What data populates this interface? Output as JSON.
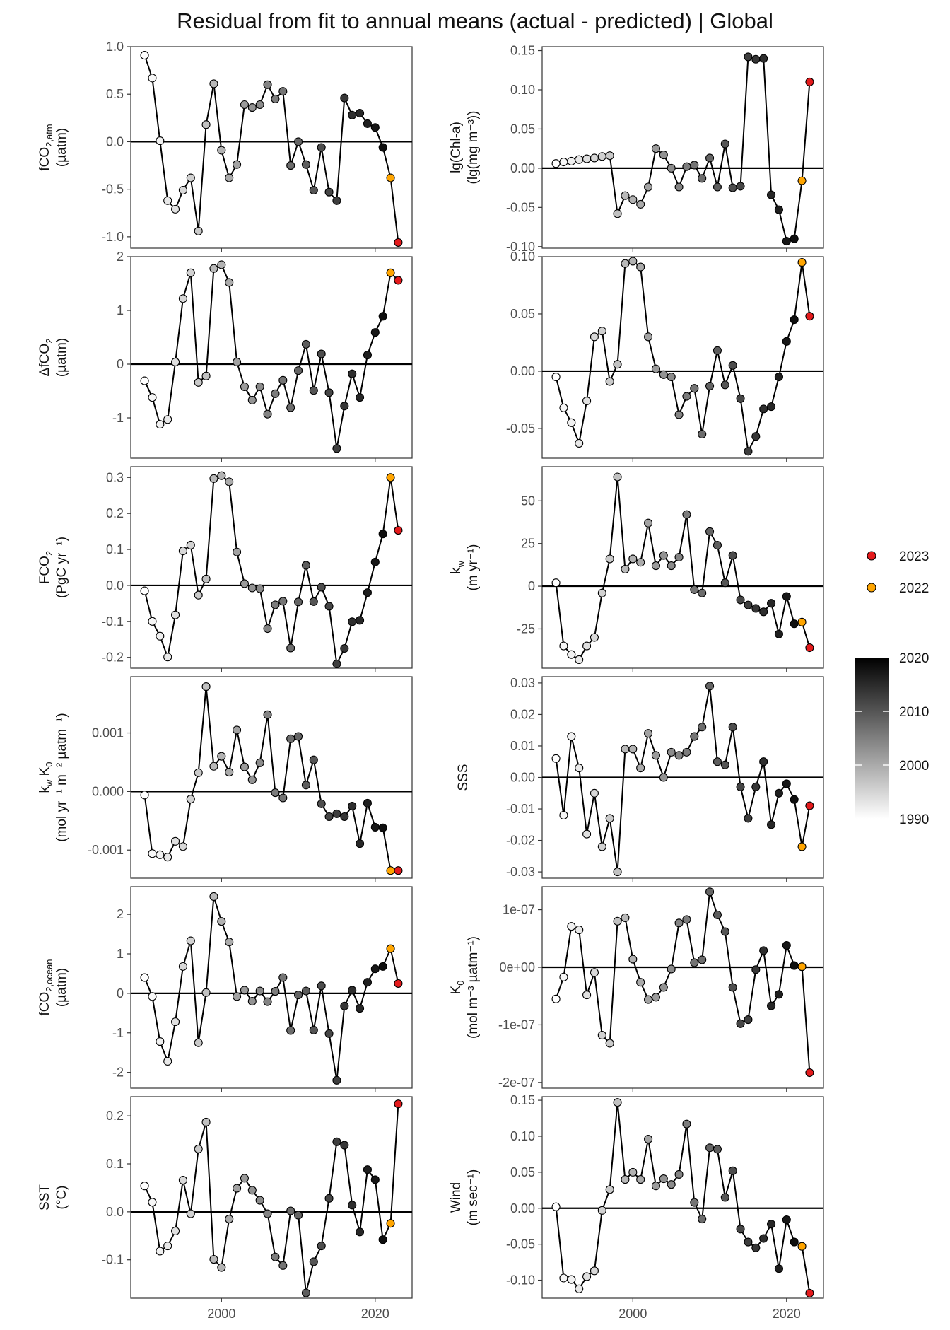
{
  "title": "Residual from fit to annual means (actual - predicted) | Global",
  "colors": {
    "highlight_2023": "#e41a1c",
    "highlight_2022": "#ffa500",
    "gradient_low": "#ffffff",
    "gradient_high": "#000000",
    "zero_line": "#000000",
    "series_line": "#000000"
  },
  "legend": {
    "highlight_items": [
      {
        "label": "2023",
        "color": "#e41a1c"
      },
      {
        "label": "2022",
        "color": "#ffa500"
      }
    ],
    "gradient_ticks": [
      1990,
      2000,
      2010,
      2020
    ],
    "gradient_range": [
      1990,
      2023
    ]
  },
  "x_axis": {
    "ticks": [
      2000,
      2020
    ],
    "range": [
      1988.2,
      2024.8
    ]
  },
  "chart_data": [
    {
      "type": "line",
      "id": "fco2atm",
      "ylabel": {
        "main": "fCO",
        "sub": "2,atm",
        "line2": "(µatm)"
      },
      "ylim": [
        -1.12,
        1.0
      ],
      "yticks": [
        -1.0,
        -0.5,
        0.0,
        0.5,
        1.0
      ],
      "ytick_labels": [
        "-1.0",
        "-0.5",
        "0.0",
        "0.5",
        "1.0"
      ],
      "x": [
        1990,
        1991,
        1992,
        1993,
        1994,
        1995,
        1996,
        1997,
        1998,
        1999,
        2000,
        2001,
        2002,
        2003,
        2004,
        2005,
        2006,
        2007,
        2008,
        2009,
        2010,
        2011,
        2012,
        2013,
        2014,
        2015,
        2016,
        2017,
        2018,
        2019,
        2020,
        2021,
        2022,
        2023
      ],
      "values": [
        0.91,
        0.67,
        0.01,
        -0.62,
        -0.71,
        -0.51,
        -0.38,
        -0.94,
        0.18,
        0.61,
        -0.09,
        -0.38,
        -0.24,
        0.39,
        0.36,
        0.39,
        0.6,
        0.45,
        0.53,
        -0.25,
        0.0,
        -0.24,
        -0.51,
        -0.06,
        -0.53,
        -0.62,
        0.46,
        0.28,
        0.3,
        0.19,
        0.15,
        -0.06,
        -0.38,
        -1.06
      ]
    },
    {
      "type": "line",
      "id": "chla",
      "ylabel": {
        "main": "lg(Chl-a)",
        "line2": "(lg(mg m⁻³))"
      },
      "ylim": [
        -0.102,
        0.155
      ],
      "yticks": [
        -0.1,
        -0.05,
        0.0,
        0.05,
        0.1,
        0.15
      ],
      "ytick_labels": [
        "-0.10",
        "-0.05",
        "0.00",
        "0.05",
        "0.10",
        "0.15"
      ],
      "x": [
        1990,
        1991,
        1992,
        1993,
        1994,
        1995,
        1996,
        1997,
        1998,
        1999,
        2000,
        2001,
        2002,
        2003,
        2004,
        2005,
        2006,
        2007,
        2008,
        2009,
        2010,
        2011,
        2012,
        2013,
        2014,
        2015,
        2016,
        2017,
        2018,
        2019,
        2020,
        2021,
        2022,
        2023
      ],
      "values": [
        0.006,
        0.008,
        0.009,
        0.011,
        0.012,
        0.013,
        0.015,
        0.016,
        -0.058,
        -0.035,
        -0.04,
        -0.046,
        -0.024,
        0.025,
        0.017,
        0.0,
        -0.024,
        0.002,
        0.004,
        -0.013,
        0.013,
        -0.024,
        0.031,
        -0.025,
        -0.023,
        0.142,
        0.139,
        0.14,
        -0.034,
        -0.053,
        -0.093,
        -0.09,
        -0.016,
        0.11
      ]
    },
    {
      "type": "line",
      "id": "dfco2",
      "ylabel": {
        "main": "ΔfCO",
        "sub": "2",
        "line2": "(µatm)"
      },
      "ylim": [
        -1.75,
        2.0
      ],
      "yticks": [
        -1,
        0,
        1,
        2
      ],
      "ytick_labels": [
        "-1",
        "0",
        "1",
        "2"
      ],
      "x": [
        1990,
        1991,
        1992,
        1993,
        1994,
        1995,
        1996,
        1997,
        1998,
        1999,
        2000,
        2001,
        2002,
        2003,
        2004,
        2005,
        2006,
        2007,
        2008,
        2009,
        2010,
        2011,
        2012,
        2013,
        2014,
        2015,
        2016,
        2017,
        2018,
        2019,
        2020,
        2021,
        2022,
        2023
      ],
      "values": [
        -0.31,
        -0.62,
        -1.12,
        -1.03,
        0.04,
        1.22,
        1.7,
        -0.34,
        -0.22,
        1.78,
        1.85,
        1.52,
        0.04,
        -0.42,
        -0.67,
        -0.42,
        -0.93,
        -0.55,
        -0.3,
        -0.81,
        -0.12,
        0.37,
        -0.49,
        0.19,
        -0.53,
        -1.57,
        -0.78,
        -0.18,
        -0.62,
        0.17,
        0.59,
        0.89,
        1.7,
        1.56
      ]
    },
    {
      "type": "line",
      "id": "r3",
      "ylabel": {
        "main": "",
        "line2": ""
      },
      "ylim": [
        -0.076,
        0.1
      ],
      "yticks": [
        -0.05,
        0.0,
        0.05,
        0.1
      ],
      "ytick_labels": [
        "-0.05",
        "0.00",
        "0.05",
        "0.10"
      ],
      "x": [
        1990,
        1991,
        1992,
        1993,
        1994,
        1995,
        1996,
        1997,
        1998,
        1999,
        2000,
        2001,
        2002,
        2003,
        2004,
        2005,
        2006,
        2007,
        2008,
        2009,
        2010,
        2011,
        2012,
        2013,
        2014,
        2015,
        2016,
        2017,
        2018,
        2019,
        2020,
        2021,
        2022,
        2023
      ],
      "values": [
        -0.005,
        -0.032,
        -0.045,
        -0.063,
        -0.026,
        0.03,
        0.035,
        -0.009,
        0.006,
        0.094,
        0.096,
        0.091,
        0.03,
        0.002,
        -0.003,
        -0.005,
        -0.038,
        -0.022,
        -0.015,
        -0.055,
        -0.013,
        0.018,
        -0.012,
        0.005,
        -0.024,
        -0.07,
        -0.057,
        -0.033,
        -0.031,
        -0.005,
        0.026,
        0.045,
        0.095,
        0.048
      ]
    },
    {
      "type": "line",
      "id": "fco2flux",
      "ylabel": {
        "main": "FCO",
        "sub": "2",
        "line2": "(PgC yr⁻¹)"
      },
      "ylim": [
        -0.23,
        0.33
      ],
      "yticks": [
        -0.2,
        -0.1,
        0.0,
        0.1,
        0.2,
        0.3
      ],
      "ytick_labels": [
        "-0.2",
        "-0.1",
        "0.0",
        "0.1",
        "0.2",
        "0.3"
      ],
      "x": [
        1990,
        1991,
        1992,
        1993,
        1994,
        1995,
        1996,
        1997,
        1998,
        1999,
        2000,
        2001,
        2002,
        2003,
        2004,
        2005,
        2006,
        2007,
        2008,
        2009,
        2010,
        2011,
        2012,
        2013,
        2014,
        2015,
        2016,
        2017,
        2018,
        2019,
        2020,
        2021,
        2022,
        2023
      ],
      "values": [
        -0.015,
        -0.1,
        -0.141,
        -0.199,
        -0.082,
        0.096,
        0.112,
        -0.027,
        0.018,
        0.297,
        0.305,
        0.288,
        0.093,
        0.005,
        -0.007,
        -0.009,
        -0.12,
        -0.054,
        -0.044,
        -0.174,
        -0.046,
        0.056,
        -0.045,
        -0.005,
        -0.058,
        -0.218,
        -0.175,
        -0.101,
        -0.097,
        -0.02,
        0.065,
        0.143,
        0.3,
        0.153
      ]
    },
    {
      "type": "line",
      "id": "kw",
      "ylabel": {
        "main": "k",
        "sub": "w",
        "line2": "(m yr⁻¹)"
      },
      "ylim": [
        -48,
        70
      ],
      "yticks": [
        -25,
        0,
        25,
        50
      ],
      "ytick_labels": [
        "-25",
        "0",
        "25",
        "50"
      ],
      "x": [
        1990,
        1991,
        1992,
        1993,
        1994,
        1995,
        1996,
        1997,
        1998,
        1999,
        2000,
        2001,
        2002,
        2003,
        2004,
        2005,
        2006,
        2007,
        2008,
        2009,
        2010,
        2011,
        2012,
        2013,
        2014,
        2015,
        2016,
        2017,
        2018,
        2019,
        2020,
        2021,
        2022,
        2023
      ],
      "values": [
        2,
        -35,
        -40,
        -43,
        -35,
        -30,
        -4,
        16,
        64,
        10,
        16,
        14,
        37,
        12,
        18,
        12,
        17,
        42,
        -2,
        -4,
        32,
        24,
        2,
        18,
        -8,
        -11,
        -13,
        -15,
        -10,
        -28,
        -6,
        -22,
        -21,
        -36
      ]
    },
    {
      "type": "line",
      "id": "kwk0",
      "ylabel": {
        "main": "k",
        "sub": "w",
        "main2": " K",
        "sub2": "0",
        "line2": "(mol yr⁻¹ m⁻² µatm⁻¹)"
      },
      "ylim": [
        -0.00148,
        0.00196
      ],
      "yticks": [
        -0.001,
        0.0,
        0.001
      ],
      "ytick_labels": [
        "-0.001",
        "0.000",
        "0.001"
      ],
      "x": [
        1990,
        1991,
        1992,
        1993,
        1994,
        1995,
        1996,
        1997,
        1998,
        1999,
        2000,
        2001,
        2002,
        2003,
        2004,
        2005,
        2006,
        2007,
        2008,
        2009,
        2010,
        2011,
        2012,
        2013,
        2014,
        2015,
        2016,
        2017,
        2018,
        2019,
        2020,
        2021,
        2022,
        2023
      ],
      "values": [
        -6e-05,
        -0.00106,
        -0.00108,
        -0.00112,
        -0.00085,
        -0.00094,
        -0.00013,
        0.00032,
        0.00179,
        0.00043,
        0.0006,
        0.00033,
        0.00105,
        0.00042,
        0.0002,
        0.00049,
        0.00131,
        -2e-05,
        -0.00011,
        0.0009,
        0.00094,
        0.00011,
        0.00054,
        -0.00021,
        -0.00043,
        -0.00038,
        -0.00043,
        -0.00025,
        -0.00089,
        -0.0002,
        -0.00061,
        -0.00062,
        -0.00135,
        -0.00135
      ]
    },
    {
      "type": "line",
      "id": "sss",
      "ylabel": {
        "main": "SSS",
        "line2": ""
      },
      "ylim": [
        -0.032,
        0.032
      ],
      "yticks": [
        -0.03,
        -0.02,
        -0.01,
        0.0,
        0.01,
        0.02,
        0.03
      ],
      "ytick_labels": [
        "-0.03",
        "-0.02",
        "-0.01",
        "0.00",
        "0.01",
        "0.02",
        "0.03"
      ],
      "x": [
        1990,
        1991,
        1992,
        1993,
        1994,
        1995,
        1996,
        1997,
        1998,
        1999,
        2000,
        2001,
        2002,
        2003,
        2004,
        2005,
        2006,
        2007,
        2008,
        2009,
        2010,
        2011,
        2012,
        2013,
        2014,
        2015,
        2016,
        2017,
        2018,
        2019,
        2020,
        2021,
        2022,
        2023
      ],
      "values": [
        0.006,
        -0.012,
        0.013,
        0.003,
        -0.018,
        -0.005,
        -0.022,
        -0.013,
        -0.03,
        0.009,
        0.009,
        0.003,
        0.014,
        0.007,
        0.0,
        0.008,
        0.007,
        0.008,
        0.013,
        0.016,
        0.029,
        0.005,
        0.004,
        0.016,
        -0.003,
        -0.013,
        -0.003,
        0.005,
        -0.015,
        -0.005,
        -0.002,
        -0.007,
        -0.022,
        -0.009
      ]
    },
    {
      "type": "line",
      "id": "fco2ocean",
      "ylabel": {
        "main": "fCO",
        "sub": "2,ocean",
        "line2": "(µatm)"
      },
      "ylim": [
        -2.4,
        2.7
      ],
      "yticks": [
        -2,
        -1,
        0,
        1,
        2
      ],
      "ytick_labels": [
        "-2",
        "-1",
        "0",
        "1",
        "2"
      ],
      "x": [
        1990,
        1991,
        1992,
        1993,
        1994,
        1995,
        1996,
        1997,
        1998,
        1999,
        2000,
        2001,
        2002,
        2003,
        2004,
        2005,
        2006,
        2007,
        2008,
        2009,
        2010,
        2011,
        2012,
        2013,
        2014,
        2015,
        2016,
        2017,
        2018,
        2019,
        2020,
        2021,
        2022,
        2023
      ],
      "values": [
        0.4,
        -0.08,
        -1.22,
        -1.72,
        -0.72,
        0.68,
        1.33,
        -1.25,
        0.02,
        2.45,
        1.82,
        1.3,
        -0.08,
        0.08,
        -0.2,
        0.06,
        -0.21,
        0.05,
        0.4,
        -0.94,
        -0.04,
        0.06,
        -0.93,
        0.19,
        -1.02,
        -2.2,
        -0.32,
        0.08,
        -0.38,
        0.28,
        0.62,
        0.68,
        1.13,
        0.25
      ]
    },
    {
      "type": "line",
      "id": "k0",
      "ylabel": {
        "main": "K",
        "sub": "0",
        "line2": "(mol m⁻³ µatm⁻¹)"
      },
      "ylim": [
        -2.1e-07,
        1.4e-07
      ],
      "yticks": [
        -2e-07,
        -1e-07,
        0,
        1e-07
      ],
      "ytick_labels": [
        "-2e-07",
        "-1e-07",
        "0e+00",
        "1e-07"
      ],
      "x": [
        1990,
        1991,
        1992,
        1993,
        1994,
        1995,
        1996,
        1997,
        1998,
        1999,
        2000,
        2001,
        2002,
        2003,
        2004,
        2005,
        2006,
        2007,
        2008,
        2009,
        2010,
        2011,
        2012,
        2013,
        2014,
        2015,
        2016,
        2017,
        2018,
        2019,
        2020,
        2021,
        2022,
        2023
      ],
      "values": [
        -5.5e-08,
        -1.7e-08,
        7.1e-08,
        6.5e-08,
        -4.8e-08,
        -9e-09,
        -1.18e-07,
        -1.32e-07,
        8e-08,
        8.6e-08,
        1.4e-08,
        -2.6e-08,
        -5.6e-08,
        -5.2e-08,
        -3.5e-08,
        -3e-09,
        7.7e-08,
        8.3e-08,
        8e-09,
        1.3e-08,
        1.31e-07,
        9.1e-08,
        6.2e-08,
        -3.5e-08,
        -9.8e-08,
        -9.1e-08,
        -4e-09,
        2.9e-08,
        -6.7e-08,
        -4.7e-08,
        3.8e-08,
        3e-09,
        1e-09,
        -1.83e-07
      ]
    },
    {
      "type": "line",
      "id": "sst",
      "ylabel": {
        "main": "SST",
        "line2": "(°C)"
      },
      "ylim": [
        -0.18,
        0.24
      ],
      "yticks": [
        -0.1,
        0.0,
        0.1,
        0.2
      ],
      "ytick_labels": [
        "-0.1",
        "0.0",
        "0.1",
        "0.2"
      ],
      "x": [
        1990,
        1991,
        1992,
        1993,
        1994,
        1995,
        1996,
        1997,
        1998,
        1999,
        2000,
        2001,
        2002,
        2003,
        2004,
        2005,
        2006,
        2007,
        2008,
        2009,
        2010,
        2011,
        2012,
        2013,
        2014,
        2015,
        2016,
        2017,
        2018,
        2019,
        2020,
        2021,
        2022,
        2023
      ],
      "values": [
        0.054,
        0.02,
        -0.082,
        -0.071,
        -0.04,
        0.066,
        -0.004,
        0.131,
        0.187,
        -0.099,
        -0.116,
        -0.015,
        0.049,
        0.07,
        0.045,
        0.024,
        -0.004,
        -0.094,
        -0.112,
        0.002,
        -0.007,
        -0.169,
        -0.104,
        -0.071,
        0.028,
        0.146,
        0.139,
        0.014,
        -0.042,
        0.088,
        0.067,
        -0.058,
        -0.024,
        0.225
      ]
    },
    {
      "type": "line",
      "id": "wind",
      "ylabel": {
        "main": "Wind",
        "line2": "(m sec⁻¹)"
      },
      "ylim": [
        -0.125,
        0.155
      ],
      "yticks": [
        -0.1,
        -0.05,
        0.0,
        0.05,
        0.1,
        0.15
      ],
      "ytick_labels": [
        "-0.10",
        "-0.05",
        "0.00",
        "0.05",
        "0.10",
        "0.15"
      ],
      "x": [
        1990,
        1991,
        1992,
        1993,
        1994,
        1995,
        1996,
        1997,
        1998,
        1999,
        2000,
        2001,
        2002,
        2003,
        2004,
        2005,
        2006,
        2007,
        2008,
        2009,
        2010,
        2011,
        2012,
        2013,
        2014,
        2015,
        2016,
        2017,
        2018,
        2019,
        2020,
        2021,
        2022,
        2023
      ],
      "values": [
        0.002,
        -0.097,
        -0.099,
        -0.112,
        -0.095,
        -0.087,
        -0.003,
        0.026,
        0.147,
        0.04,
        0.05,
        0.04,
        0.096,
        0.031,
        0.041,
        0.033,
        0.047,
        0.117,
        0.008,
        -0.015,
        0.084,
        0.082,
        0.015,
        0.052,
        -0.029,
        -0.047,
        -0.055,
        -0.042,
        -0.022,
        -0.084,
        -0.016,
        -0.047,
        -0.053,
        -0.118
      ]
    }
  ]
}
